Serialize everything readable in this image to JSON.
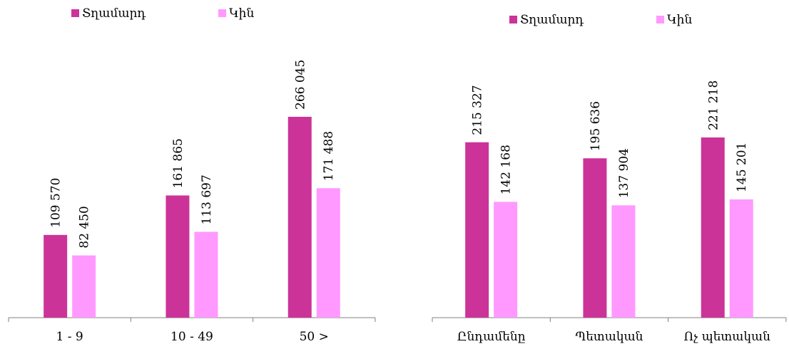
{
  "chart_data": [
    {
      "type": "bar",
      "categories": [
        "1  -  9",
        "10  -  49",
        "50  >"
      ],
      "series": [
        {
          "name": "Տղամարդ",
          "values": [
            109570,
            161865,
            266045
          ],
          "labels": [
            "109 570",
            "161 865",
            "266 045"
          ],
          "color": "#cc3399"
        },
        {
          "name": "Կին",
          "values": [
            82450,
            113697,
            171488
          ],
          "labels": [
            "82 450",
            "113 697",
            "171 488"
          ],
          "color": "#ff99ff"
        }
      ],
      "ylim": [
        0,
        300000
      ],
      "legend": "top-left",
      "grid": false
    },
    {
      "type": "bar",
      "categories": [
        "Ընդամենը",
        "Պետական",
        "Ոչ պետական"
      ],
      "series": [
        {
          "name": "Տղամարդ",
          "values": [
            215327,
            195636,
            221218
          ],
          "labels": [
            "215 327",
            "195 636",
            "221 218"
          ],
          "color": "#cc3399"
        },
        {
          "name": "Կին",
          "values": [
            142168,
            137904,
            145201
          ],
          "labels": [
            "142 168",
            "137 904",
            "145 201"
          ],
          "color": "#ff99ff"
        }
      ],
      "ylim": [
        0,
        270000
      ],
      "legend": "top-center",
      "grid": false
    }
  ]
}
